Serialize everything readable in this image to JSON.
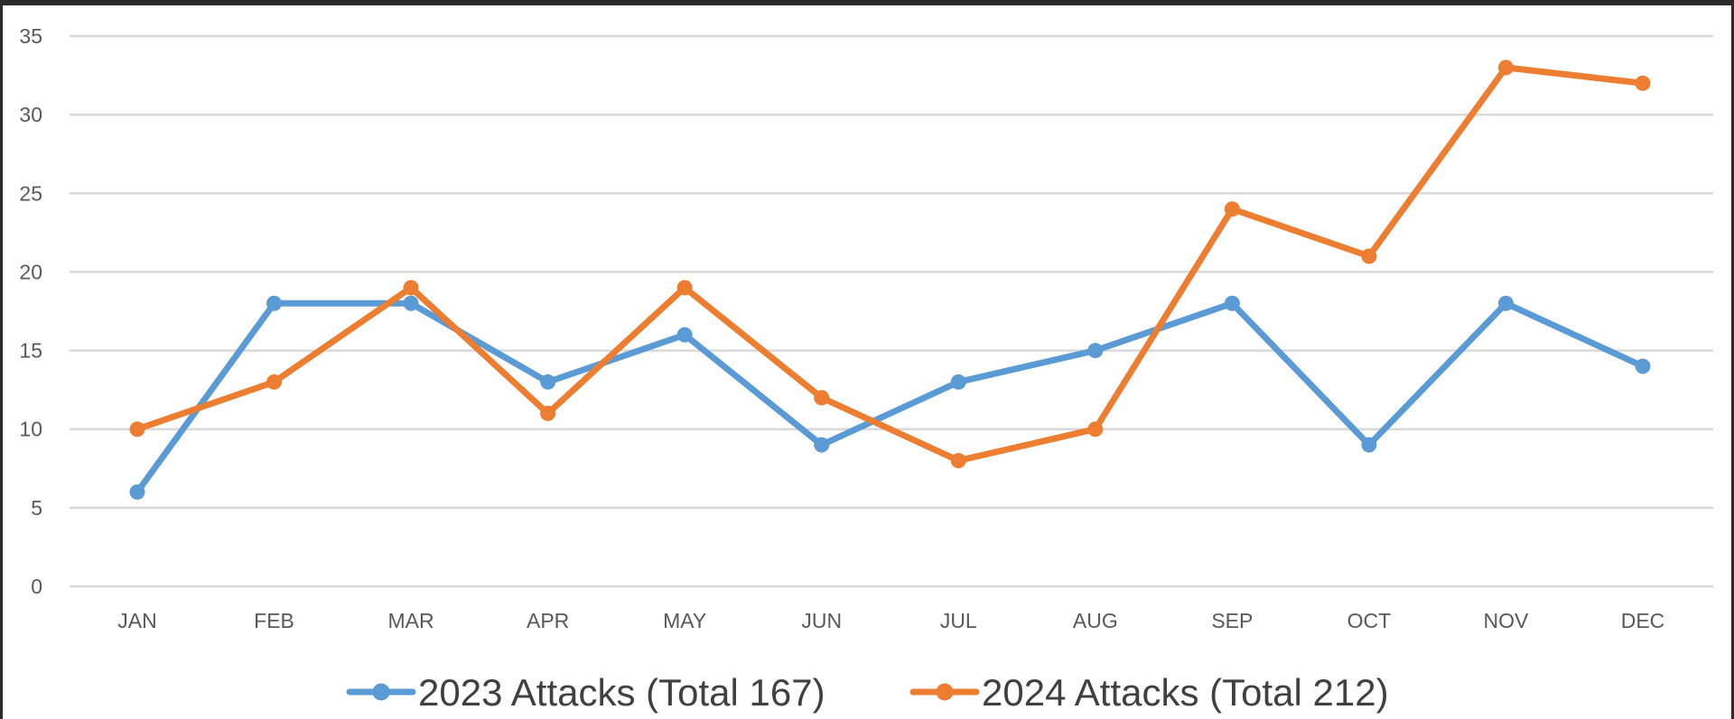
{
  "chart_data": {
    "type": "line",
    "categories": [
      "JAN",
      "FEB",
      "MAR",
      "APR",
      "MAY",
      "JUN",
      "JUL",
      "AUG",
      "SEP",
      "OCT",
      "NOV",
      "DEC"
    ],
    "series": [
      {
        "name": "2023 Attacks (Total 167)",
        "color": "#5b9bd5",
        "values": [
          6,
          18,
          18,
          13,
          16,
          9,
          13,
          15,
          18,
          9,
          18,
          14
        ]
      },
      {
        "name": "2024 Attacks (Total 212)",
        "color": "#ed7d31",
        "values": [
          10,
          13,
          19,
          11,
          19,
          12,
          8,
          10,
          24,
          21,
          33,
          32
        ]
      }
    ],
    "ylim": [
      0,
      35
    ],
    "yticks": [
      0,
      5,
      10,
      15,
      20,
      25,
      30,
      35
    ],
    "grid": true,
    "legend_position": "bottom",
    "title": "",
    "xlabel": "",
    "ylabel": ""
  }
}
